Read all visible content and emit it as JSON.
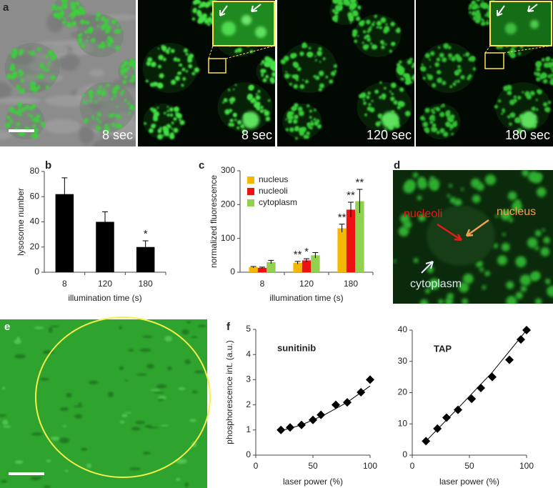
{
  "panel_labels": [
    "a",
    "b",
    "c",
    "d",
    "e",
    "f"
  ],
  "image_labels": [
    "8 sec",
    "8 sec",
    "120 sec",
    "180 sec"
  ],
  "panel_d_labels": [
    "nucleoli",
    "nucleus",
    "cytoplasm"
  ],
  "chart_data": [
    {
      "type": "bar",
      "ylabel": "lysosome number",
      "xlabel": "illumination time (s)",
      "categories": [
        "8",
        "120",
        "180"
      ],
      "values": [
        62,
        40,
        20
      ],
      "errors": [
        13,
        8,
        5
      ],
      "significance": [
        null,
        null,
        "*"
      ],
      "color": "#000000",
      "ylim": [
        0,
        80
      ],
      "yticks": [
        0,
        20,
        40,
        60,
        80
      ]
    },
    {
      "type": "bar",
      "ylabel": "normalized fluorescence",
      "xlabel": "illumination time (s)",
      "categories": [
        "8",
        "120",
        "180"
      ],
      "series": [
        {
          "name": "nucleus",
          "color": "#f5b800",
          "values": [
            15,
            28,
            130
          ],
          "errors": [
            2,
            4,
            12
          ],
          "significance": [
            null,
            "**",
            "**"
          ]
        },
        {
          "name": "nucleoli",
          "color": "#ee1111",
          "values": [
            13,
            35,
            185
          ],
          "errors": [
            2,
            5,
            22
          ],
          "significance": [
            null,
            "*",
            "**"
          ]
        },
        {
          "name": "cytoplasm",
          "color": "#92d050",
          "values": [
            30,
            50,
            210
          ],
          "errors": [
            5,
            8,
            35
          ],
          "significance": [
            null,
            null,
            "**"
          ]
        }
      ],
      "ylim": [
        0,
        300
      ],
      "yticks": [
        0,
        100,
        200,
        300
      ]
    },
    {
      "type": "scatter",
      "title": "sunitinib",
      "ylabel": "phosphorescence int. (a.u.)",
      "xlabel": "laser power (%)",
      "x": [
        22,
        30,
        40,
        50,
        57,
        70,
        80,
        92,
        100
      ],
      "values": [
        1.0,
        1.1,
        1.2,
        1.4,
        1.6,
        2.0,
        2.1,
        2.5,
        3.0
      ],
      "fit": {
        "x": [
          22,
          40,
          60,
          80,
          100
        ],
        "values": [
          0.97,
          1.2,
          1.6,
          2.1,
          2.75
        ]
      },
      "color": "#000000",
      "xlim": [
        0,
        100
      ],
      "xticks": [
        0,
        50,
        100
      ],
      "ylim": [
        0,
        5
      ],
      "yticks": [
        0,
        1,
        2,
        3,
        4,
        5
      ]
    },
    {
      "type": "scatter",
      "title": "TAP",
      "xlabel": "laser power (%)",
      "x": [
        12,
        22,
        30,
        40,
        52,
        60,
        70,
        85,
        95,
        100
      ],
      "values": [
        4.5,
        8.5,
        12,
        14.5,
        18,
        21.5,
        25,
        30.5,
        37,
        40
      ],
      "fit": {
        "x": [
          12,
          40,
          70,
          100
        ],
        "values": [
          4.5,
          15,
          26.5,
          40
        ]
      },
      "color": "#000000",
      "xlim": [
        0,
        100
      ],
      "xticks": [
        0,
        50,
        100
      ],
      "ylim": [
        0,
        40
      ],
      "yticks": [
        0,
        10,
        20,
        30,
        40
      ]
    }
  ]
}
